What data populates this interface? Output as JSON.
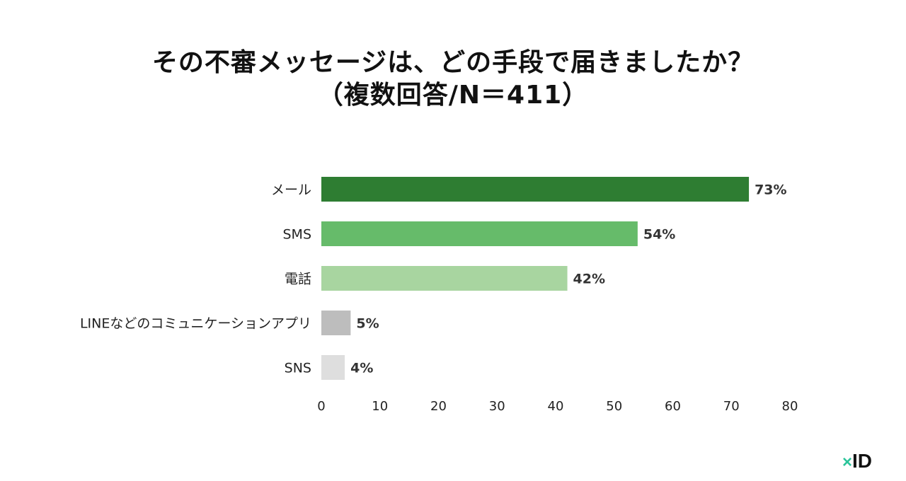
{
  "title": {
    "line1": "その不審メッセージは、どの手段で届きましたか？",
    "line2": "（複数回答/N＝411）"
  },
  "logo": {
    "mark": "×",
    "text": "ID"
  },
  "chart_data": {
    "type": "bar",
    "orientation": "horizontal",
    "categories": [
      "メール",
      "SMS",
      "電話",
      "LINEなどのコミュニケーションアプリ",
      "SNS"
    ],
    "values": [
      73,
      54,
      42,
      5,
      4
    ],
    "value_labels": [
      "73%",
      "54%",
      "42%",
      "5%",
      "4%"
    ],
    "colors": [
      "#2e7d32",
      "#66bb6a",
      "#a8d5a0",
      "#bdbdbd",
      "#dedede"
    ],
    "xlim": [
      0,
      80
    ],
    "xticks": [
      0,
      10,
      20,
      30,
      40,
      50,
      60,
      70,
      80
    ],
    "grid": false,
    "legend": "none"
  }
}
